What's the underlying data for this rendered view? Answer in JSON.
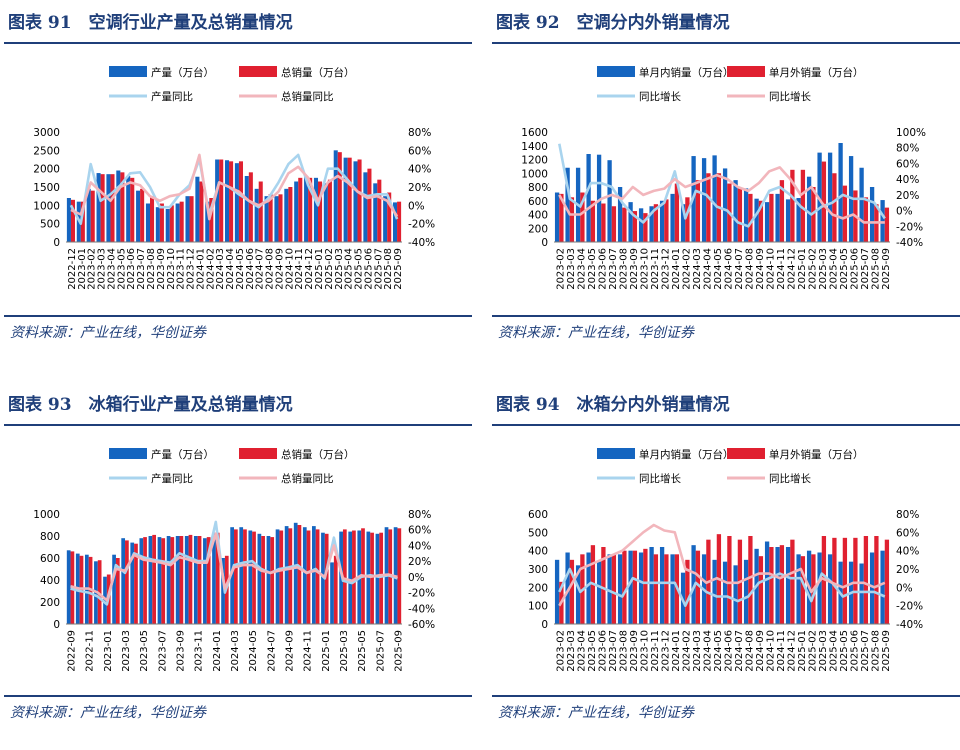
{
  "colors": {
    "dom_bar": "#1565c0",
    "exp_bar": "#e02030",
    "dom_line": "#a9d4ee",
    "exp_line": "#f2b6bc",
    "title": "#1f3f7a"
  },
  "panels": [
    {
      "title": "图表 91　空调行业产量及总销量情况",
      "source": "资料来源：产业在线，华创证券"
    },
    {
      "title": "图表 92　空调分内外销量情况",
      "source": "资料来源：产业在线，华创证券"
    },
    {
      "title": "图表 93　冰箱行业产量及总销量情况",
      "source": "资料来源：产业在线，华创证券"
    },
    {
      "title": "图表 94　冰箱分内外销量情况",
      "source": "资料来源：产业在线，华创证券"
    }
  ],
  "chart_data": [
    {
      "type": "bar+line",
      "title": "空调行业产量及总销量情况",
      "legend": [
        "产量（万台）",
        "总销量（万台）",
        "产量同比",
        "总销量同比"
      ],
      "categories": [
        "2022-12",
        "2023-01",
        "2023-02",
        "2023-03",
        "2023-04",
        "2023-05",
        "2023-06",
        "2023-07",
        "2023-08",
        "2023-09",
        "2023-10",
        "2023-11",
        "2023-12",
        "2024-01",
        "2024-02",
        "2024-03",
        "2024-04",
        "2024-05",
        "2024-06",
        "2024-07",
        "2024-08",
        "2024-09",
        "2024-10",
        "2024-11",
        "2024-12",
        "2025-01",
        "2025-02",
        "2025-03",
        "2025-04",
        "2025-05",
        "2025-06",
        "2025-07",
        "2025-08",
        "2025-09"
      ],
      "xtick_labels": [
        "2022-12",
        "2023-01",
        "2023-02",
        "2023-03",
        "2023-04",
        "2023-05",
        "2023-06",
        "2023-07",
        "2023-08",
        "2023-09",
        "2023-10",
        "2023-11",
        "2023-12",
        "2024-01",
        "2024-02",
        "2024-03",
        "2024-04",
        "2024-05",
        "2024-06",
        "2024-07",
        "2024-08",
        "2024-09",
        "2024-10",
        "2024-11",
        "2024-12",
        "2025-01",
        "2025-02",
        "2025-03",
        "2025-04",
        "2025-05",
        "2025-06",
        "2025-07",
        "2025-08",
        "2025-09"
      ],
      "ylim": [
        0,
        3000
      ],
      "yticks": [
        0,
        500,
        1000,
        1500,
        2000,
        2500,
        3000
      ],
      "y2lim": [
        -40,
        80
      ],
      "y2ticks": [
        -40,
        -20,
        0,
        20,
        40,
        60,
        80
      ],
      "series": [
        {
          "name": "产量（万台）",
          "kind": "bar",
          "values": [
            1200,
            1100,
            1450,
            1880,
            1850,
            1950,
            1800,
            1400,
            1050,
            950,
            900,
            1050,
            1250,
            1780,
            1100,
            2250,
            2230,
            2150,
            1800,
            1450,
            1250,
            1250,
            1450,
            1650,
            1800,
            1750,
            1600,
            2500,
            2300,
            2200,
            1900,
            1600,
            1250,
            1080
          ]
        },
        {
          "name": "总销量（万台）",
          "kind": "bar",
          "values": [
            1150,
            1100,
            1400,
            1850,
            1850,
            1900,
            1750,
            1450,
            1250,
            1050,
            1000,
            1100,
            1250,
            1650,
            1200,
            2250,
            2200,
            2200,
            1900,
            1650,
            1300,
            1300,
            1500,
            1750,
            1750,
            1650,
            1700,
            2450,
            2300,
            2250,
            2000,
            1700,
            1350,
            1100
          ]
        },
        {
          "name": "产量同比",
          "kind": "line",
          "values": [
            0,
            -20,
            45,
            5,
            12,
            22,
            35,
            36,
            20,
            -2,
            -2,
            12,
            22,
            50,
            -10,
            25,
            20,
            12,
            5,
            -2,
            8,
            25,
            45,
            55,
            22,
            0,
            40,
            40,
            28,
            15,
            10,
            12,
            12,
            -15
          ]
        },
        {
          "name": "总销量同比",
          "kind": "line",
          "values": [
            -5,
            -10,
            25,
            15,
            5,
            20,
            25,
            22,
            10,
            5,
            10,
            12,
            18,
            55,
            -15,
            25,
            20,
            15,
            5,
            0,
            5,
            15,
            35,
            42,
            30,
            5,
            25,
            32,
            25,
            15,
            8,
            10,
            5,
            -12
          ]
        }
      ]
    },
    {
      "type": "bar+line",
      "title": "空调分内外销量情况",
      "legend": [
        "单月内销量（万台）",
        "单月外销量（万台）",
        "同比增长",
        "同比增长"
      ],
      "categories": [
        "2023-02",
        "2023-03",
        "2023-04",
        "2023-05",
        "2023-06",
        "2023-07",
        "2023-08",
        "2023-09",
        "2023-10",
        "2023-11",
        "2023-12",
        "2024-01",
        "2024-02",
        "2024-03",
        "2024-04",
        "2024-05",
        "2024-06",
        "2024-07",
        "2024-08",
        "2024-09",
        "2024-10",
        "2024-11",
        "2024-12",
        "2025-01",
        "2025-02",
        "2025-03",
        "2025-04",
        "2025-05",
        "2025-06",
        "2025-07",
        "2025-08",
        "2025-09"
      ],
      "xtick_labels": [
        "2023-02",
        "2023-03",
        "2023-04",
        "2023-05",
        "2023-06",
        "2023-07",
        "2023-08",
        "2023-09",
        "2023-10",
        "2023-11",
        "2023-12",
        "2024-01",
        "2024-02",
        "2024-03",
        "2024-04",
        "2024-05",
        "2024-06",
        "2024-07",
        "2024-08",
        "2024-09",
        "2024-10",
        "2024-11",
        "2024-12",
        "2025-01",
        "2025-02",
        "2025-03",
        "2025-04",
        "2025-05",
        "2025-06",
        "2025-07",
        "2025-08",
        "2025-09"
      ],
      "ylim": [
        0,
        1600
      ],
      "yticks": [
        0,
        200,
        400,
        600,
        800,
        1000,
        1200,
        1400,
        1600
      ],
      "y2lim": [
        -40,
        100
      ],
      "y2ticks": [
        -40,
        -20,
        0,
        20,
        40,
        60,
        80,
        100
      ],
      "series": [
        {
          "name": "单月内销量（万台）",
          "kind": "bar",
          "values": [
            720,
            1080,
            1080,
            1280,
            1270,
            1190,
            800,
            580,
            490,
            520,
            600,
            700,
            550,
            1250,
            1220,
            1260,
            1070,
            900,
            780,
            630,
            580,
            700,
            620,
            640,
            950,
            1300,
            1300,
            1440,
            1250,
            1080,
            800,
            610
          ]
        },
        {
          "name": "单月外销量（万台）",
          "kind": "bar",
          "values": [
            700,
            650,
            720,
            600,
            560,
            520,
            500,
            450,
            420,
            550,
            620,
            850,
            650,
            900,
            1000,
            1000,
            850,
            780,
            700,
            600,
            700,
            900,
            1050,
            1050,
            800,
            1170,
            1000,
            820,
            750,
            650,
            550,
            500
          ]
        },
        {
          "name": "同比增长",
          "kind": "line",
          "values": [
            85,
            15,
            5,
            35,
            35,
            30,
            10,
            -5,
            -15,
            0,
            10,
            50,
            -10,
            25,
            20,
            5,
            0,
            -15,
            -20,
            0,
            25,
            30,
            20,
            5,
            -5,
            5,
            10,
            20,
            15,
            15,
            10,
            -10
          ]
        },
        {
          "name": "同比增长",
          "kind": "line",
          "values": [
            20,
            -5,
            -5,
            5,
            15,
            20,
            15,
            30,
            20,
            25,
            28,
            40,
            30,
            35,
            40,
            45,
            40,
            30,
            25,
            35,
            50,
            55,
            40,
            20,
            30,
            10,
            -5,
            -10,
            -5,
            -15,
            -15,
            -15
          ]
        }
      ]
    },
    {
      "type": "bar+line",
      "title": "冰箱行业产量及总销量情况",
      "legend": [
        "产量（万台）",
        "总销量（万台）",
        "产量同比",
        "总销量同比"
      ],
      "categories": [
        "2022-09",
        "2022-10",
        "2022-11",
        "2022-12",
        "2023-01",
        "2023-02",
        "2023-03",
        "2023-04",
        "2023-05",
        "2023-06",
        "2023-07",
        "2023-08",
        "2023-09",
        "2023-10",
        "2023-11",
        "2023-12",
        "2024-01",
        "2024-02",
        "2024-03",
        "2024-04",
        "2024-05",
        "2024-06",
        "2024-07",
        "2024-08",
        "2024-09",
        "2024-10",
        "2024-11",
        "2024-12",
        "2025-01",
        "2025-02",
        "2025-03",
        "2025-04",
        "2025-05",
        "2025-06",
        "2025-07",
        "2025-08",
        "2025-09"
      ],
      "xtick_labels": [
        "2022-09",
        "",
        "2022-11",
        "",
        "2023-01",
        "",
        "2023-03",
        "",
        "2023-05",
        "",
        "2023-07",
        "",
        "2023-09",
        "",
        "2023-11",
        "",
        "2024-01",
        "",
        "2024-03",
        "",
        "2024-05",
        "",
        "2024-07",
        "",
        "2024-09",
        "",
        "2024-11",
        "",
        "2025-01",
        "",
        "2025-03",
        "",
        "2025-05",
        "",
        "2025-07",
        "",
        "2025-09"
      ],
      "ylim": [
        0,
        1000
      ],
      "yticks": [
        0,
        200,
        400,
        600,
        800,
        1000
      ],
      "y2lim": [
        -60,
        80
      ],
      "y2ticks": [
        -60,
        -40,
        -20,
        0,
        20,
        40,
        60,
        80
      ],
      "series": [
        {
          "name": "产量（万台）",
          "kind": "bar",
          "values": [
            670,
            640,
            630,
            570,
            430,
            630,
            780,
            740,
            780,
            800,
            790,
            800,
            800,
            800,
            800,
            780,
            830,
            600,
            880,
            880,
            850,
            820,
            800,
            860,
            890,
            920,
            880,
            890,
            830,
            560,
            840,
            840,
            850,
            840,
            820,
            880,
            880
          ]
        },
        {
          "name": "总销量（万台）",
          "kind": "bar",
          "values": [
            660,
            620,
            610,
            580,
            450,
            600,
            760,
            730,
            790,
            810,
            780,
            790,
            800,
            810,
            800,
            790,
            830,
            620,
            860,
            860,
            840,
            800,
            790,
            850,
            870,
            900,
            850,
            860,
            820,
            620,
            860,
            850,
            870,
            830,
            830,
            860,
            870
          ]
        },
        {
          "name": "产量同比",
          "kind": "line",
          "values": [
            -15,
            -18,
            -20,
            -25,
            -35,
            15,
            5,
            30,
            25,
            22,
            20,
            18,
            30,
            25,
            20,
            20,
            70,
            -20,
            15,
            18,
            20,
            10,
            5,
            10,
            12,
            15,
            5,
            10,
            -2,
            50,
            -5,
            -8,
            0,
            2,
            0,
            2,
            -2
          ]
        },
        {
          "name": "总销量同比",
          "kind": "line",
          "values": [
            -12,
            -15,
            -15,
            -20,
            -30,
            10,
            8,
            28,
            22,
            20,
            18,
            15,
            25,
            22,
            18,
            18,
            55,
            -15,
            12,
            15,
            15,
            8,
            5,
            8,
            10,
            12,
            5,
            8,
            0,
            40,
            -2,
            -5,
            2,
            0,
            2,
            3,
            0
          ]
        }
      ]
    },
    {
      "type": "bar+line",
      "title": "冰箱分内外销量情况",
      "legend": [
        "单月内销量（万台）",
        "单月外销量（万台）",
        "同比增长",
        "同比增长"
      ],
      "categories": [
        "2023-02",
        "2023-03",
        "2023-04",
        "2023-05",
        "2023-06",
        "2023-07",
        "2023-08",
        "2023-09",
        "2023-10",
        "2023-11",
        "2023-12",
        "2024-01",
        "2024-02",
        "2024-03",
        "2024-04",
        "2024-05",
        "2024-06",
        "2024-07",
        "2024-08",
        "2024-09",
        "2024-10",
        "2024-11",
        "2024-12",
        "2025-01",
        "2025-02",
        "2025-03",
        "2025-04",
        "2025-05",
        "2025-06",
        "2025-07",
        "2025-08",
        "2025-09"
      ],
      "xtick_labels": [
        "2023-02",
        "2023-03",
        "2023-04",
        "2023-05",
        "2023-06",
        "2023-07",
        "2023-08",
        "2023-09",
        "2023-10",
        "2023-11",
        "2023-12",
        "2024-01",
        "2024-02",
        "2024-03",
        "2024-04",
        "2024-05",
        "2024-06",
        "2024-07",
        "2024-08",
        "2024-09",
        "2024-10",
        "2024-11",
        "2024-12",
        "2025-01",
        "2025-02",
        "2025-03",
        "2025-04",
        "2025-05",
        "2025-06",
        "2025-07",
        "2025-08",
        "2025-09"
      ],
      "ylim": [
        0,
        600
      ],
      "yticks": [
        0,
        100,
        200,
        300,
        400,
        500,
        600
      ],
      "y2lim": [
        -40,
        80
      ],
      "y2ticks": [
        -40,
        -20,
        0,
        20,
        40,
        60,
        80
      ],
      "series": [
        {
          "name": "单月内销量（万台）",
          "kind": "bar",
          "values": [
            350,
            390,
            320,
            390,
            340,
            380,
            380,
            400,
            390,
            420,
            420,
            380,
            280,
            430,
            380,
            350,
            340,
            320,
            350,
            410,
            450,
            420,
            420,
            380,
            400,
            390,
            380,
            340,
            340,
            330,
            390,
            400
          ]
        },
        {
          "name": "单月外销量（万台）",
          "kind": "bar",
          "values": [
            230,
            350,
            380,
            430,
            420,
            380,
            400,
            400,
            410,
            380,
            380,
            380,
            350,
            400,
            460,
            490,
            480,
            460,
            480,
            370,
            420,
            430,
            460,
            370,
            380,
            480,
            470,
            470,
            470,
            480,
            480,
            460
          ]
        },
        {
          "name": "同比增长",
          "kind": "line",
          "values": [
            -5,
            20,
            -5,
            5,
            0,
            -5,
            -10,
            10,
            5,
            5,
            5,
            5,
            -20,
            5,
            -5,
            -10,
            -10,
            -15,
            -10,
            5,
            10,
            15,
            10,
            10,
            -15,
            15,
            5,
            -10,
            -5,
            -5,
            -5,
            -10
          ]
        },
        {
          "name": "同比增长",
          "kind": "line",
          "values": [
            -20,
            0,
            20,
            25,
            30,
            35,
            40,
            50,
            60,
            68,
            62,
            60,
            20,
            15,
            5,
            10,
            5,
            5,
            10,
            15,
            15,
            10,
            15,
            20,
            -5,
            10,
            5,
            0,
            5,
            5,
            0,
            5
          ]
        }
      ]
    }
  ]
}
